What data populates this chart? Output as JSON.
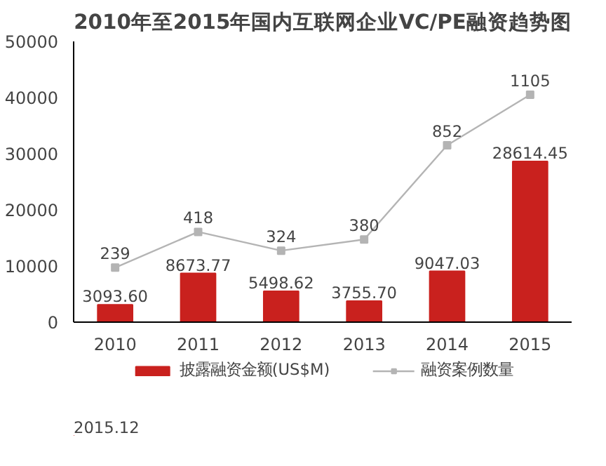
{
  "chart_data": {
    "type": "bar",
    "title": "2010年至2015年国内互联网企业VC/PE融资趋势图",
    "categories": [
      "2010",
      "2011",
      "2012",
      "2013",
      "2014",
      "2015"
    ],
    "series": [
      {
        "name": "披露融资金额(US$M)",
        "color": "#c9211e",
        "values": [
          3093.6,
          8673.77,
          5498.62,
          3755.7,
          9047.03,
          28614.45
        ],
        "value_labels": [
          "3093.60",
          "8673.77",
          "5498.62",
          "3755.70",
          "9047.03",
          "28614.45"
        ]
      },
      {
        "name": "融资案例数量",
        "type": "line",
        "axis": "y2",
        "color": "#b4b4b4",
        "marker": "square",
        "values": [
          239,
          418,
          324,
          380,
          852,
          1105
        ]
      }
    ],
    "ylim": [
      0,
      50000
    ],
    "yticks": [
      0,
      10000,
      20000,
      30000,
      40000,
      50000
    ],
    "y2lim": [
      -34,
      1372
    ],
    "tick_labels": [
      "x",
      "y"
    ],
    "data_labels": true,
    "grid": false,
    "legend": "bottom",
    "annotations": [
      "2015.12"
    ]
  }
}
